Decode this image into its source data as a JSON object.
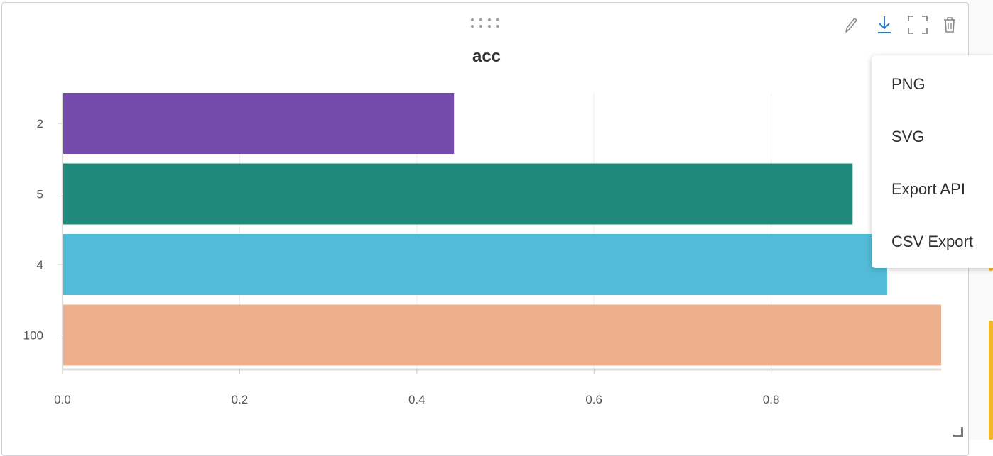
{
  "panel": {
    "title": "acc"
  },
  "toolbar": {
    "items": [
      {
        "name": "edit",
        "icon": "pencil-icon"
      },
      {
        "name": "download",
        "icon": "download-icon"
      },
      {
        "name": "fullscreen",
        "icon": "fullscreen-icon"
      },
      {
        "name": "delete",
        "icon": "trash-icon"
      }
    ]
  },
  "download_menu": {
    "items": [
      "PNG",
      "SVG",
      "Export API",
      "CSV Export"
    ]
  },
  "chart_data": {
    "type": "bar",
    "orientation": "horizontal",
    "title": "acc",
    "categories": [
      "2",
      "5",
      "4",
      "100"
    ],
    "values": [
      0.442,
      0.892,
      0.931,
      0.992
    ],
    "colors": [
      "#744aab",
      "#1f8a7b",
      "#52bcd8",
      "#eeaf8f"
    ],
    "xticks": [
      "0.0",
      "0.2",
      "0.4",
      "0.6",
      "0.8"
    ],
    "xlim": [
      0,
      1.0
    ],
    "grid": true
  }
}
